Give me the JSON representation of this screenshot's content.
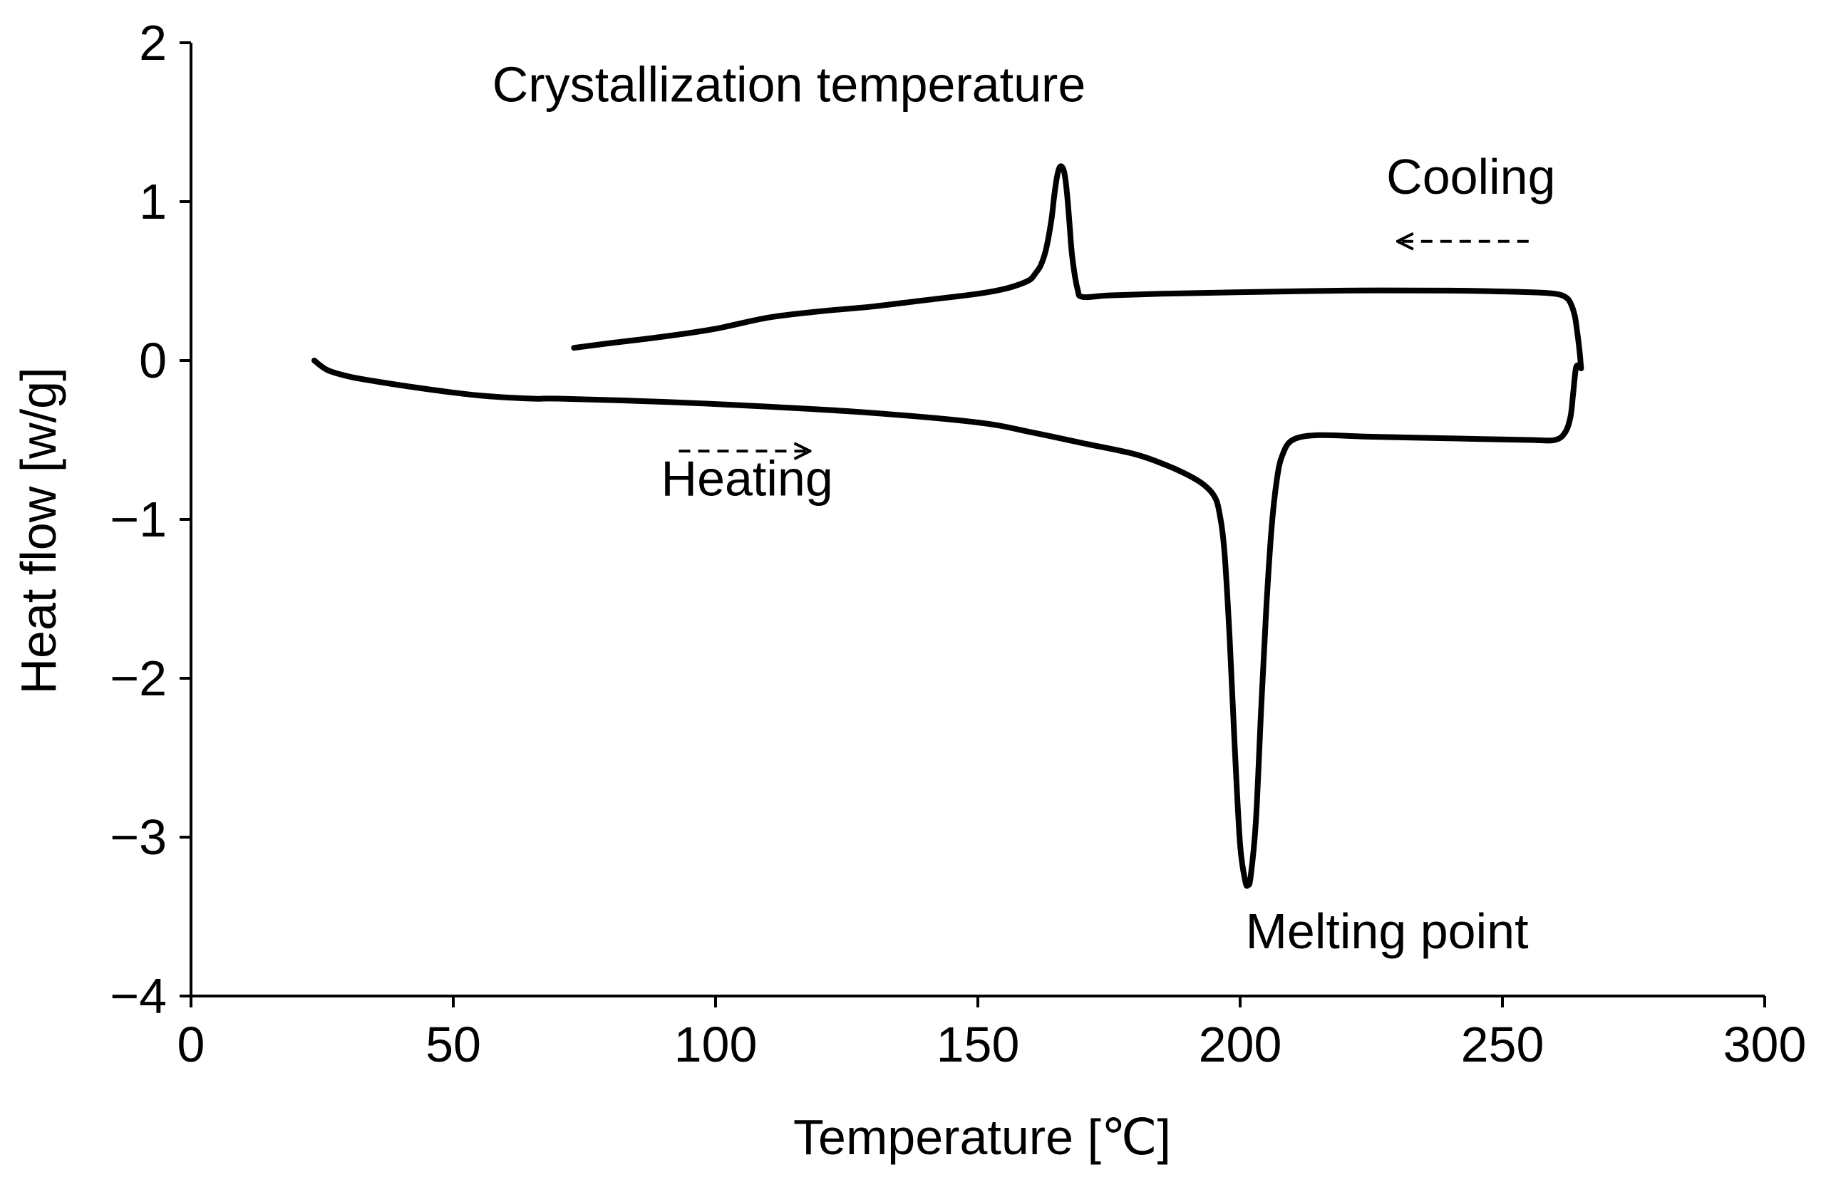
{
  "chart_data": {
    "type": "line",
    "title": "",
    "xlabel": "Temperature [℃]",
    "ylabel": "Heat flow [w/g]",
    "xlim": [
      0,
      300
    ],
    "ylim": [
      -4,
      2
    ],
    "xticks": [
      0,
      50,
      100,
      150,
      200,
      250,
      300
    ],
    "xtick_labels": [
      "0",
      "50",
      "100",
      "150",
      "200",
      "250",
      "300"
    ],
    "yticks": [
      2,
      1,
      0,
      -1,
      -2,
      -3,
      -4
    ],
    "ytick_labels": [
      "2",
      "1",
      "0",
      "−1",
      "−2",
      "−3",
      "−4"
    ],
    "grid": false,
    "series": [
      {
        "name": "Heating",
        "x": [
          23.5,
          26,
          30,
          35,
          45,
          55,
          65,
          70,
          90,
          110,
          130,
          150,
          160,
          170,
          180,
          186,
          190,
          193,
          195,
          196,
          197,
          198,
          199,
          200,
          201,
          201.5,
          202,
          203,
          204,
          205,
          206,
          207,
          208,
          210,
          215,
          225,
          240,
          255,
          260,
          262,
          263,
          263.5,
          264,
          264.5
        ],
        "y": [
          0.0,
          -0.06,
          -0.1,
          -0.13,
          -0.18,
          -0.22,
          -0.24,
          -0.24,
          -0.26,
          -0.29,
          -0.33,
          -0.39,
          -0.45,
          -0.52,
          -0.59,
          -0.66,
          -0.72,
          -0.78,
          -0.85,
          -0.95,
          -1.2,
          -1.75,
          -2.45,
          -3.05,
          -3.28,
          -3.3,
          -3.25,
          -2.9,
          -2.2,
          -1.55,
          -1.05,
          -0.75,
          -0.6,
          -0.5,
          -0.47,
          -0.48,
          -0.49,
          -0.5,
          -0.5,
          -0.45,
          -0.35,
          -0.2,
          -0.05,
          -0.03
        ]
      },
      {
        "name": "Cooling",
        "x": [
          265,
          264.7,
          264.3,
          263.8,
          263,
          262,
          260,
          255,
          240,
          220,
          200,
          185,
          175,
          170,
          169,
          168,
          167.5,
          167,
          166.5,
          166,
          165.5,
          165,
          164.5,
          164,
          163,
          162,
          161,
          160,
          158,
          155,
          150,
          140,
          130,
          120,
          110,
          100,
          90,
          80,
          73
        ],
        "y": [
          -0.05,
          0.06,
          0.17,
          0.28,
          0.36,
          0.4,
          0.42,
          0.43,
          0.44,
          0.44,
          0.43,
          0.42,
          0.41,
          0.4,
          0.45,
          0.65,
          0.85,
          1.05,
          1.18,
          1.22,
          1.21,
          1.14,
          1.02,
          0.88,
          0.7,
          0.6,
          0.55,
          0.51,
          0.48,
          0.45,
          0.42,
          0.38,
          0.34,
          0.31,
          0.27,
          0.2,
          0.15,
          0.11,
          0.08
        ]
      }
    ],
    "annotations": [
      {
        "text": "Crystallization temperature",
        "x": 114,
        "y": 1.63
      },
      {
        "text": "Cooling",
        "x": 244,
        "y": 1.05
      },
      {
        "text": "Heating",
        "x": 106,
        "y": -0.85
      },
      {
        "text": "Melting point",
        "x": 228,
        "y": -3.7
      }
    ],
    "arrows": [
      {
        "name": "cooling-arrow",
        "from_x": 255,
        "from_y": 0.75,
        "to_x": 230,
        "to_y": 0.75,
        "style": "dashed"
      },
      {
        "name": "heating-arrow",
        "from_x": 93,
        "from_y": -0.57,
        "to_x": 118,
        "to_y": -0.57,
        "style": "dashed"
      }
    ],
    "line_color": "#000000"
  }
}
